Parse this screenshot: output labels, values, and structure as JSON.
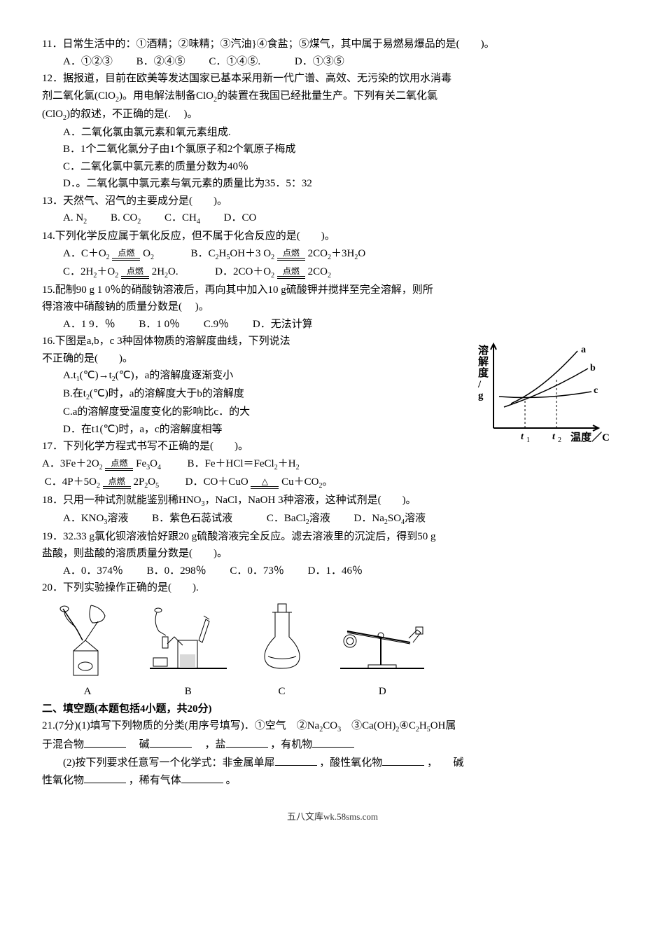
{
  "q11": {
    "stem": "11．日常生活中的：①酒精；②味精；③汽油}④食盐；⑤煤气，其中属于易燃易爆品的是(　　)。",
    "opts": {
      "A": "A．①②③",
      "B": "B．②④⑤",
      "C": "C．①④⑤.",
      "D": "D．①③⑤"
    }
  },
  "q12": {
    "l1": "12．据报道，目前在欧美等发达国家已基本采用新一代广谱、高效、无污染的饮用水消毒",
    "l2_a": "剂二氧化氯(ClO",
    "l2_b": ")。用电解法制备ClO",
    "l2_c": "的装置在我国已经批量生产。下列有关二氧化氯",
    "l3_a": "(ClO",
    "l3_b": ")的叙述，不正确的是(.　 )。",
    "optA": "A．二氧化氯由氯元素和氧元素组成.",
    "optB": "B．1个二氧化氯分子由1个氯原子和2个氧原子梅成",
    "optC": "C．二氧化氯中氯元素的质量分数为40％",
    "optD": "D．。二氧化氯中氯元素与氧元素的质量比为35．5：32"
  },
  "q13": {
    "stem": "13．天然气、沼气的主要成分是(　　)。",
    "optA_a": "A. N",
    "optB_a": "B. CO",
    "optC_a": "C．CH",
    "optD": "D．CO"
  },
  "q14": {
    "stem": " 14.下列化学反应属于氧化反应，但不属于化合反应的是(　　)。",
    "A_pre": "A．C＋O",
    "A_post": " O",
    "B_pre": "B．C",
    "B_eth": "H",
    "B_oh": "OH＋3 O",
    "B_post": " 2CO",
    "B_h2o": "＋3H",
    "B_o": "O",
    "C_pre": "C．2H",
    "C_plus": "＋O",
    "C_post": " 2H",
    "C_o": "O.",
    "D_pre": "D．2CO＋O",
    "D_post": " 2CO",
    "cond": "点燃"
  },
  "q15": {
    "l1": "15.配制90 g 1 0％的硝酸钠溶液后，再向其中加入10 g硫酸钾并搅拌至完全溶解，则所",
    "l2": "得溶液中硝酸钠的质量分数是(　 )。",
    "opts": {
      "A": "A．1 9．％",
      "B": "B．1 0％",
      "C": "C.9％",
      "D": "D．无法计算"
    }
  },
  "q16": {
    "l1": "16.下图是a,b，c 3种固体物质的溶解度曲线，下列说法",
    "l2": "不正确的是(　　)。",
    "optA_a": "A.t",
    "optA_b": "(℃)→t",
    "optA_c": "(℃)，a的溶解度逐渐变小",
    "optB_a": "B.在t",
    "optB_b": "(℃)时，a的溶解度大于b的溶解度",
    "optC": "C.a的溶解度受温度变化的影响比c．的大",
    "optD": "D．在t1(℃)时，a，c的溶解度相等"
  },
  "chart": {
    "y_label": [
      "溶",
      "解",
      "度",
      "/",
      "g"
    ],
    "x_label": "温度／C",
    "t1": "t",
    "t1s": "1",
    "t2": "t",
    "t2s": "2",
    "a": "a",
    "b": "b",
    "c": "c",
    "axis_color": "#000000",
    "line_color": "#000000",
    "font_bold": "bold",
    "width": 190,
    "height": 160
  },
  "q17": {
    "stem": "17．下列化学方程式书写不正确的是(　　)。",
    "A_pre": "A．3Fe＋2O",
    "A_post": "Fe",
    "A_o": "O",
    "B_pre": "B．Fe＋HCl＝FeCl",
    "B_post": "＋H",
    "C_pre": "C．4P＋5O",
    "C_post": " 2P",
    "C_o": "O",
    "D_pre": "D．CO＋CuO",
    "D_post": " Cu＋CO",
    "D_tail": "。",
    "cond": "点燃"
  },
  "q18": {
    "stem_a": "18．只用一种试剂就能鉴别稀HNO",
    "stem_b": "，NaCl，NaOH 3种溶液，这种试剂是(　　)。",
    "A_a": "A．KNO",
    "A_b": "溶液",
    "B": "B．紫色石蕊试液",
    "C_a": "C．BaCl",
    "C_b": "溶液",
    "D_a": "D．Na",
    "D_b": "SO",
    "D_c": "溶液"
  },
  "q19": {
    "l1": "19．32.33 g氯化钡溶液恰好跟20 g硫酸溶液完全反应。滤去溶液里的沉淀后，得到50 g",
    "l2": "盐酸，则盐酸的溶质质量分数是(　　)。",
    "opts": {
      "A": "A．0．374％",
      "B": "B．0．298％",
      "C": "C．0．73％",
      "D": "D．1．46％"
    }
  },
  "q20": {
    "stem": "20．下列实验操作正确的是(　　).",
    "labels": {
      "A": "A",
      "B": "B",
      "C": "C",
      "D": "D"
    }
  },
  "sec2": "二、填空题(本题包括4小题，共20分)",
  "q21": {
    "l1_a": "21.(7分)(1)填写下列物质的分类(用序号填写)．①空气　②Na",
    "l1_b": "CO",
    "l1_c": "　③Ca(OH)",
    "l1_d": "④C",
    "l1_e": "H",
    "l1_f": "OH属",
    "l2_a": "于混合物",
    "l2_b": "　碱",
    "l2_c": "　，盐",
    "l2_d": "，有机物",
    "l3_a": "(2)按下列要求任意写一个化学式：非金属单犀",
    "l3_b": "，酸性氧化物",
    "l3_c": "，　　碱",
    "l4_a": "性氧化物",
    "l4_b": "，稀有气体",
    "l4_c": "。"
  },
  "footer": "五八文库wk.58sms.com"
}
